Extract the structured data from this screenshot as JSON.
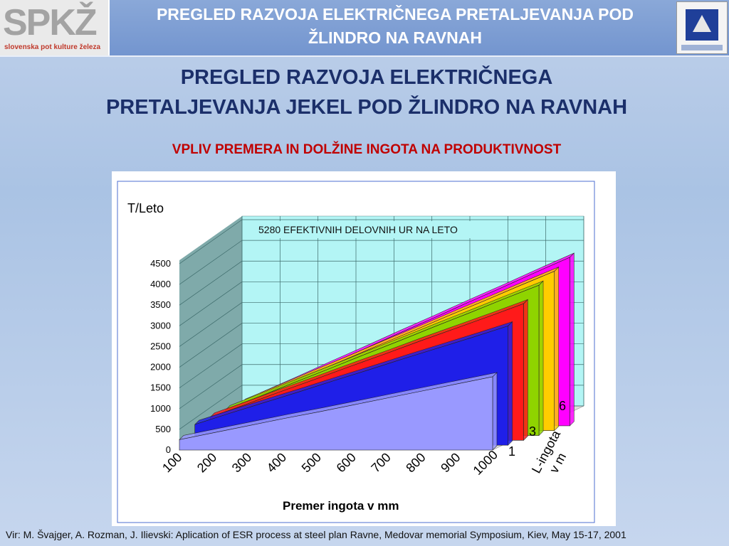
{
  "header": {
    "logo_text": "SPKŽ",
    "logo_sub": "slovenska pot kulture železa",
    "title": "PREGLED RAZVOJA ELEKTRIČNEGA PRETALJEVANJA POD ŽLINDRO NA RAVNAH"
  },
  "slide": {
    "title_line1": "PREGLED RAZVOJA ELEKTRIČNEGA",
    "title_line2": "PRETALJEVANJA JEKEL POD ŽLINDRO NA RAVNAH",
    "subtitle": "VPLIV PREMERA IN DOLŽINE INGOTA NA PRODUKTIVNOST",
    "source": "Vir: M. Švajger, A. Rozman, J. Ilievski: Aplication of ESR process at steel plan Ravne, Medovar memorial Symposium, Kiev, May 15-17, 2001"
  },
  "chart_data": {
    "type": "area",
    "title": "5280 EFEKTIVNIH DELOVNIH UR NA LETO",
    "ylabel": "T/Leto",
    "xlabel": "Premer ingota v mm",
    "zlabel": "L-ingota v m",
    "categories": [
      "100",
      "200",
      "300",
      "400",
      "500",
      "600",
      "700",
      "800",
      "900",
      "1000"
    ],
    "z_tick_labels": [
      "1",
      "3",
      "6"
    ],
    "ylim": [
      0,
      4500
    ],
    "y_ticks": [
      0,
      500,
      1000,
      1500,
      2000,
      2500,
      3000,
      3500,
      4000,
      4500
    ],
    "series": [
      {
        "color": "#9999ff",
        "values": [
          250,
          420,
          590,
          760,
          920,
          1090,
          1260,
          1430,
          1600,
          1770
        ]
      },
      {
        "color": "#1f1fe8",
        "values": [
          500,
          770,
          1030,
          1290,
          1560,
          1820,
          2090,
          2350,
          2610,
          2880
        ]
      },
      {
        "color": "#ff1a1a",
        "values": [
          560,
          860,
          1170,
          1470,
          1780,
          2080,
          2390,
          2690,
          2990,
          3300
        ]
      },
      {
        "color": "#8fd400",
        "values": [
          620,
          950,
          1290,
          1620,
          1960,
          2290,
          2630,
          2960,
          3300,
          3630
        ]
      },
      {
        "color": "#ffcc00",
        "values": [
          660,
          1010,
          1370,
          1720,
          2080,
          2430,
          2790,
          3140,
          3500,
          3850
        ]
      },
      {
        "color": "#ff00ff",
        "values": [
          700,
          1070,
          1450,
          1820,
          2200,
          2570,
          2950,
          3320,
          3700,
          4070
        ]
      }
    ],
    "grid": true,
    "colors": {
      "wall_back": "#b3f5f5",
      "wall_left": "#7faaaa",
      "floor": "#dddddd"
    }
  }
}
